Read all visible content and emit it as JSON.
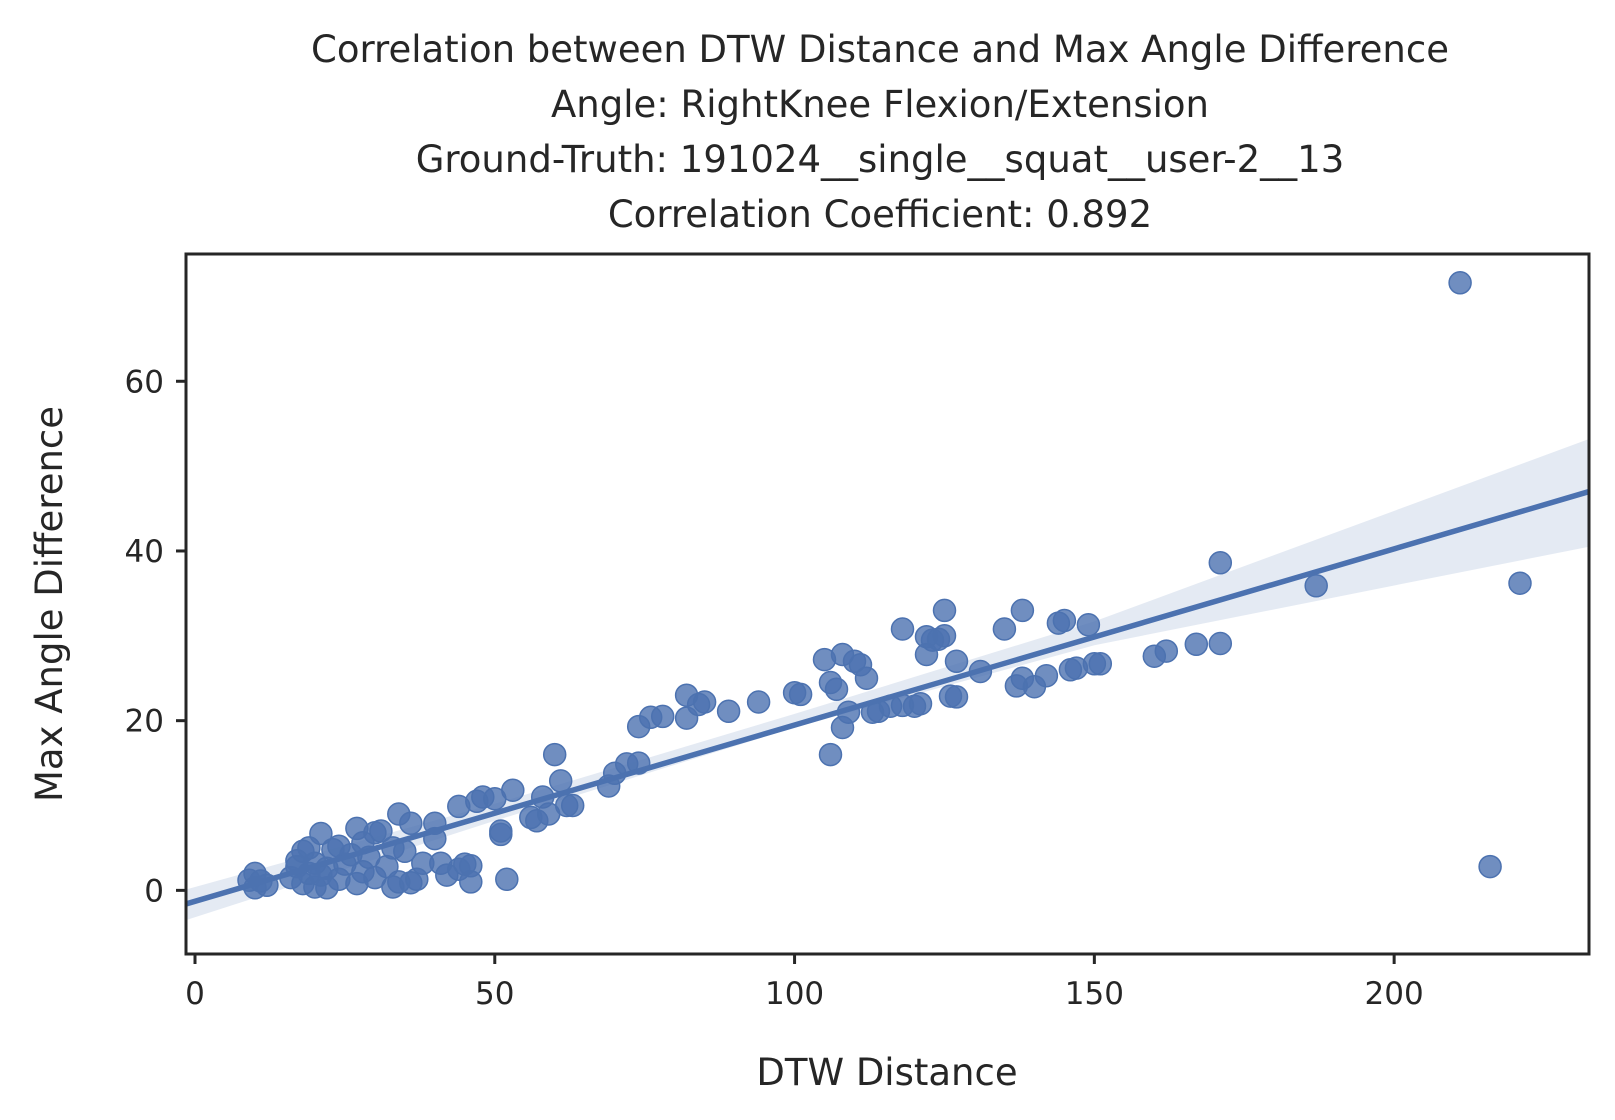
{
  "chart_data": {
    "type": "scatter",
    "title_lines": [
      "Correlation between DTW Distance and Max Angle Difference",
      "Angle: RightKnee Flexion/Extension",
      "Ground-Truth: 191024__single__squat__user-2__13",
      "Correlation Coefficient: 0.892"
    ],
    "xlabel": "DTW Distance",
    "ylabel": "Max Angle Difference",
    "xlim": [
      -1.5,
      232.5
    ],
    "ylim": [
      -7.5,
      75
    ],
    "xticks": [
      0,
      50,
      100,
      150,
      200
    ],
    "yticks": [
      0,
      20,
      40,
      60
    ],
    "grid": false,
    "colors": {
      "points": "#4c72b0",
      "line": "#4c72b0",
      "band": "#4c72b0"
    },
    "regression": {
      "x_range": [
        -1.5,
        232.5
      ],
      "line": [
        [
          -1.5,
          -1.6
        ],
        [
          232.5,
          47.0
        ]
      ],
      "ci_upper": [
        [
          -1.5,
          0.1
        ],
        [
          50,
          10.2
        ],
        [
          100,
          20.8
        ],
        [
          150,
          31.7
        ],
        [
          232.5,
          53.2
        ]
      ],
      "ci_lower": [
        [
          -1.5,
          -3.5
        ],
        [
          50,
          8.2
        ],
        [
          100,
          19.2
        ],
        [
          150,
          28.9
        ],
        [
          232.5,
          40.5
        ]
      ]
    },
    "points": [
      [
        9,
        1.2
      ],
      [
        10,
        0.3
      ],
      [
        10,
        2.0
      ],
      [
        11,
        1.1
      ],
      [
        12,
        0.6
      ],
      [
        16,
        1.5
      ],
      [
        17,
        2.8
      ],
      [
        17,
        3.5
      ],
      [
        18,
        0.8
      ],
      [
        18,
        4.6
      ],
      [
        19,
        2.0
      ],
      [
        19,
        5.0
      ],
      [
        20,
        0.4
      ],
      [
        20,
        3.2
      ],
      [
        21,
        1.8
      ],
      [
        21,
        6.7
      ],
      [
        22,
        0.3
      ],
      [
        22,
        2.6
      ],
      [
        23,
        4.8
      ],
      [
        24,
        1.3
      ],
      [
        24,
        5.2
      ],
      [
        25,
        3.1
      ],
      [
        26,
        4.2
      ],
      [
        27,
        7.3
      ],
      [
        27,
        0.8
      ],
      [
        28,
        2.2
      ],
      [
        28,
        5.6
      ],
      [
        29,
        3.9
      ],
      [
        30,
        6.8
      ],
      [
        30,
        1.5
      ],
      [
        31,
        7.0
      ],
      [
        32,
        2.8
      ],
      [
        33,
        5.0
      ],
      [
        33,
        0.4
      ],
      [
        34,
        9.0
      ],
      [
        34,
        1.0
      ],
      [
        35,
        4.6
      ],
      [
        36,
        7.9
      ],
      [
        36,
        0.9
      ],
      [
        37,
        1.3
      ],
      [
        38,
        3.2
      ],
      [
        40,
        6.1
      ],
      [
        40,
        7.9
      ],
      [
        41,
        3.2
      ],
      [
        42,
        1.8
      ],
      [
        44,
        2.5
      ],
      [
        44,
        9.9
      ],
      [
        45,
        3.1
      ],
      [
        46,
        2.9
      ],
      [
        46,
        1.0
      ],
      [
        47,
        10.5
      ],
      [
        48,
        11.0
      ],
      [
        50,
        10.8
      ],
      [
        51,
        6.6
      ],
      [
        51,
        7.0
      ],
      [
        52,
        1.3
      ],
      [
        53,
        11.8
      ],
      [
        56,
        8.6
      ],
      [
        57,
        8.2
      ],
      [
        58,
        11.0
      ],
      [
        59,
        9.0
      ],
      [
        60,
        16.0
      ],
      [
        61,
        12.9
      ],
      [
        62,
        10.0
      ],
      [
        63,
        10.0
      ],
      [
        69,
        12.3
      ],
      [
        70,
        13.8
      ],
      [
        72,
        14.9
      ],
      [
        74,
        15.0
      ],
      [
        74,
        19.3
      ],
      [
        76,
        20.4
      ],
      [
        78,
        20.5
      ],
      [
        82,
        23.0
      ],
      [
        82,
        20.3
      ],
      [
        84,
        21.9
      ],
      [
        85,
        22.2
      ],
      [
        89,
        21.1
      ],
      [
        94,
        22.2
      ],
      [
        100,
        23.3
      ],
      [
        101,
        23.1
      ],
      [
        105,
        27.2
      ],
      [
        106,
        16.0
      ],
      [
        106,
        24.5
      ],
      [
        107,
        23.7
      ],
      [
        108,
        27.8
      ],
      [
        108,
        19.2
      ],
      [
        109,
        21.0
      ],
      [
        110,
        27.0
      ],
      [
        111,
        26.6
      ],
      [
        112,
        25.0
      ],
      [
        113,
        21.0
      ],
      [
        114,
        21.1
      ],
      [
        116,
        21.7
      ],
      [
        118,
        21.8
      ],
      [
        118,
        30.8
      ],
      [
        120,
        21.7
      ],
      [
        121,
        22.0
      ],
      [
        122,
        27.8
      ],
      [
        122,
        29.9
      ],
      [
        123,
        29.5
      ],
      [
        124,
        29.6
      ],
      [
        125,
        30.0
      ],
      [
        125,
        33.0
      ],
      [
        126,
        22.9
      ],
      [
        127,
        27.0
      ],
      [
        127,
        22.8
      ],
      [
        131,
        25.8
      ],
      [
        135,
        30.8
      ],
      [
        137,
        24.1
      ],
      [
        138,
        25.0
      ],
      [
        138,
        33.0
      ],
      [
        140,
        24.0
      ],
      [
        142,
        25.3
      ],
      [
        144,
        31.5
      ],
      [
        145,
        31.8
      ],
      [
        146,
        26.0
      ],
      [
        147,
        26.2
      ],
      [
        149,
        31.3
      ],
      [
        150,
        26.7
      ],
      [
        151,
        26.7
      ],
      [
        160,
        27.6
      ],
      [
        162,
        28.2
      ],
      [
        167,
        29.0
      ],
      [
        171,
        29.1
      ],
      [
        171,
        38.6
      ],
      [
        187,
        35.9
      ],
      [
        211,
        71.6
      ],
      [
        216,
        2.8
      ],
      [
        221,
        36.2
      ]
    ]
  }
}
